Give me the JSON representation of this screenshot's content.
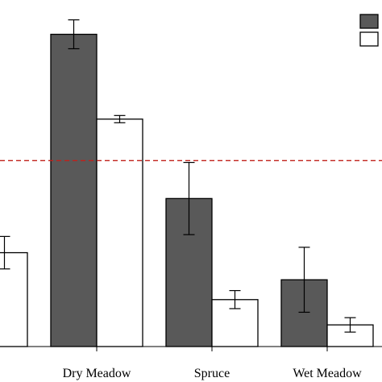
{
  "chart_data": {
    "type": "bar",
    "title": "",
    "xlabel": "",
    "ylabel": "",
    "categories": [
      "",
      "Dry Meadow",
      "Spruce",
      "Wet Meadow"
    ],
    "series": [
      {
        "color": "#595959",
        "values": [
          null,
          1.7,
          0.79,
          0.34
        ],
        "error": [
          null,
          0.08,
          0.2,
          0.18
        ]
      },
      {
        "color": "#ffffff",
        "values": [
          0.49,
          1.23,
          0.23,
          0.09
        ],
        "error": [
          0.09,
          0.02,
          0.05,
          0.04
        ]
      }
    ],
    "reference_line": {
      "value": 1.0,
      "color": "#c0201a",
      "style": "dashed"
    },
    "ylim": [
      -0.03,
      1.89
    ],
    "grid": false,
    "legend_position": "top-right",
    "colors": {
      "dark": "#595959",
      "light": "#ffffff",
      "reference": "#c0201a"
    }
  }
}
